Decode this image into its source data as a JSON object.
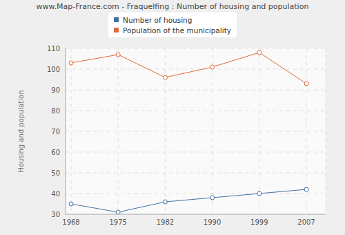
{
  "chart_data": {
    "type": "line",
    "title": "www.Map-France.com - Fraquelfing : Number of housing and population",
    "y_label": "Housing and population",
    "categories": [
      "1968",
      "1975",
      "1982",
      "1990",
      "1999",
      "2007"
    ],
    "series": [
      {
        "name": "Number of housing",
        "color": "#3e70a0",
        "marker": "circle",
        "values": [
          35,
          31,
          36,
          38,
          40,
          42
        ]
      },
      {
        "name": "Population of the municipality",
        "color": "#e0693a",
        "marker": "circle",
        "values": [
          103,
          107,
          96,
          101,
          108,
          93
        ]
      }
    ],
    "ylim": [
      30,
      110
    ],
    "yticks": [
      30,
      40,
      50,
      60,
      70,
      80,
      90,
      100,
      110
    ],
    "grid": true,
    "legend": "top"
  }
}
